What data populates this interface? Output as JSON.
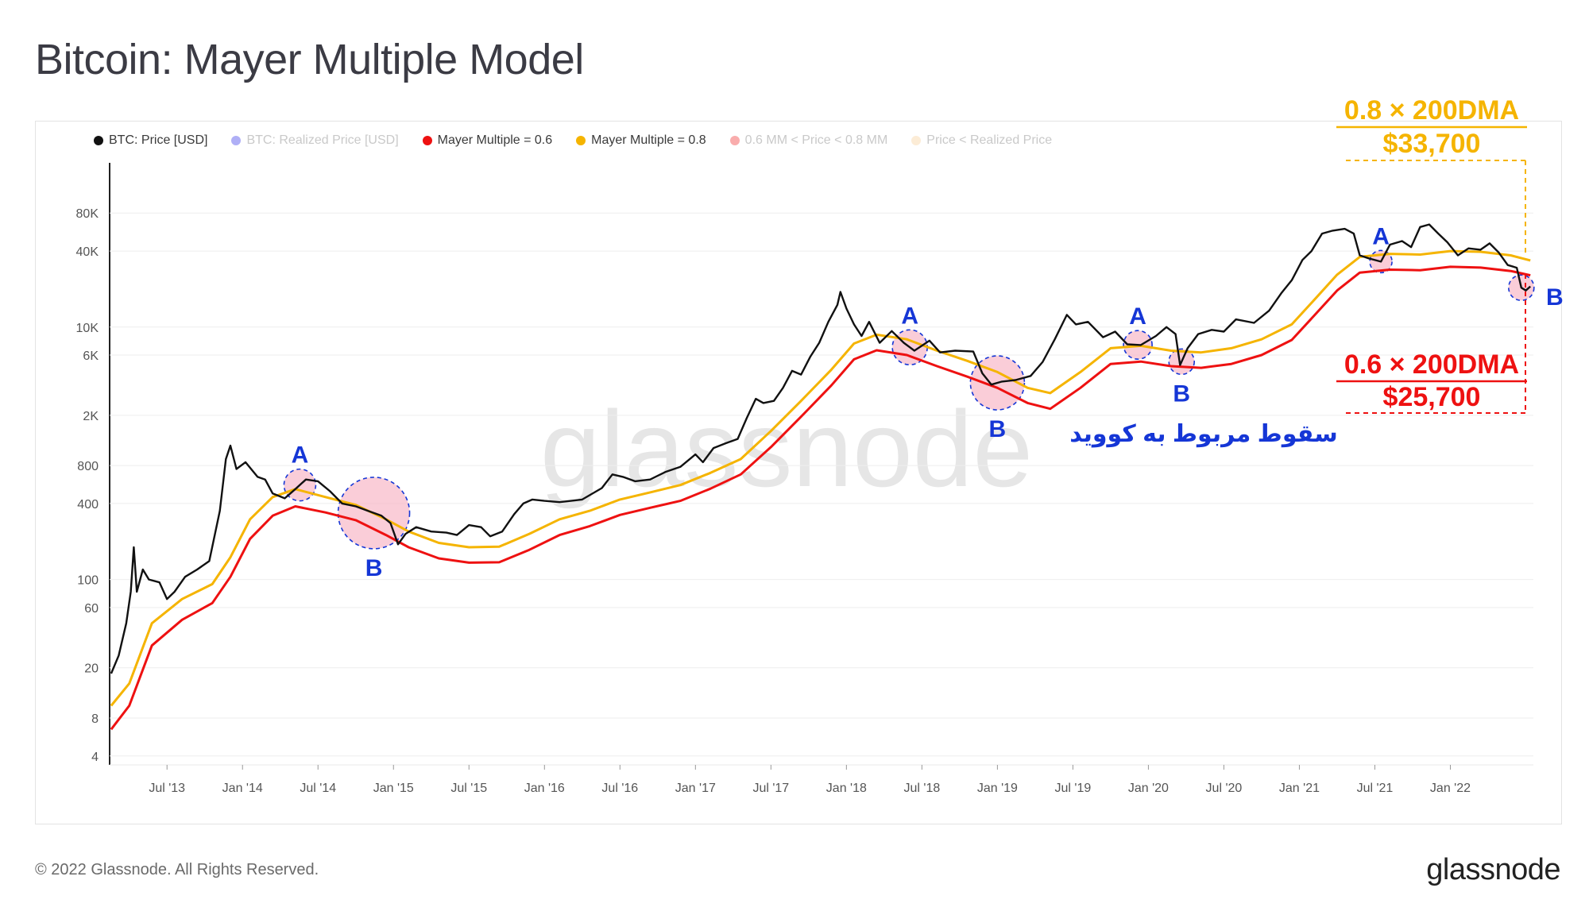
{
  "page": {
    "title": "Bitcoin: Mayer Multiple Model",
    "copyright": "© 2022 Glassnode. All Rights Reserved.",
    "logo_text": "glassnode",
    "watermark": "glassnode"
  },
  "legend": [
    {
      "label": "BTC: Price [USD]",
      "color": "#111111",
      "active": true
    },
    {
      "label": "BTC: Realized Price [USD]",
      "color": "#1a1ae6",
      "active": false
    },
    {
      "label": "Mayer Multiple = 0.6",
      "color": "#ee1111",
      "active": true
    },
    {
      "label": "Mayer Multiple = 0.8",
      "color": "#f5b400",
      "active": true
    },
    {
      "label": "0.6 MM < Price < 0.8 MM",
      "color": "#ee1111",
      "active": false
    },
    {
      "label": "Price < Realized Price",
      "color": "#f7c98a",
      "active": false
    }
  ],
  "annotations": {
    "upper_label": "0.8 × 200DMA",
    "upper_value": "$33,700",
    "lower_label": "0.6 × 200DMA",
    "lower_value": "$25,700",
    "covid_text": "سقوط مربوط به کووید",
    "markers": [
      {
        "letter": "A",
        "date": 2014.38
      },
      {
        "letter": "B",
        "date": 2014.87
      },
      {
        "letter": "A",
        "date": 2018.42
      },
      {
        "letter": "B",
        "date": 2019.0
      },
      {
        "letter": "A",
        "date": 2019.93
      },
      {
        "letter": "B",
        "date": 2020.22
      },
      {
        "letter": "A",
        "date": 2021.54
      },
      {
        "letter": "B",
        "date": 2022.47
      }
    ],
    "colors": {
      "upper": "#f5b400",
      "lower": "#ee1111",
      "marker_text": "#1536d6"
    }
  },
  "chart_data": {
    "type": "line",
    "title": "Bitcoin: Mayer Multiple Model",
    "y_scale": "log",
    "ylim": [
      3.4,
      200000
    ],
    "xlim": [
      2013.12,
      2022.55
    ],
    "y_ticks": [
      {
        "value": 4,
        "label": "4"
      },
      {
        "value": 8,
        "label": "8"
      },
      {
        "value": 20,
        "label": "20"
      },
      {
        "value": 60,
        "label": "60"
      },
      {
        "value": 100,
        "label": "100"
      },
      {
        "value": 400,
        "label": "400"
      },
      {
        "value": 800,
        "label": "800"
      },
      {
        "value": 2000,
        "label": "2K"
      },
      {
        "value": 6000,
        "label": "6K"
      },
      {
        "value": 10000,
        "label": "10K"
      },
      {
        "value": 40000,
        "label": "40K"
      },
      {
        "value": 80000,
        "label": "80K"
      }
    ],
    "x_ticks": [
      {
        "value": 2013.5,
        "label": "Jul '13"
      },
      {
        "value": 2014.0,
        "label": "Jan '14"
      },
      {
        "value": 2014.5,
        "label": "Jul '14"
      },
      {
        "value": 2015.0,
        "label": "Jan '15"
      },
      {
        "value": 2015.5,
        "label": "Jul '15"
      },
      {
        "value": 2016.0,
        "label": "Jan '16"
      },
      {
        "value": 2016.5,
        "label": "Jul '16"
      },
      {
        "value": 2017.0,
        "label": "Jan '17"
      },
      {
        "value": 2017.5,
        "label": "Jul '17"
      },
      {
        "value": 2018.0,
        "label": "Jan '18"
      },
      {
        "value": 2018.5,
        "label": "Jul '18"
      },
      {
        "value": 2019.0,
        "label": "Jan '19"
      },
      {
        "value": 2019.5,
        "label": "Jul '19"
      },
      {
        "value": 2020.0,
        "label": "Jan '20"
      },
      {
        "value": 2020.5,
        "label": "Jul '20"
      },
      {
        "value": 2021.0,
        "label": "Jan '21"
      },
      {
        "value": 2021.5,
        "label": "Jul '21"
      },
      {
        "value": 2022.0,
        "label": "Jan '22"
      }
    ],
    "series": [
      {
        "name": "BTC: Price [USD]",
        "color": "#111111",
        "points": [
          [
            2013.13,
            18
          ],
          [
            2013.18,
            25
          ],
          [
            2013.23,
            45
          ],
          [
            2013.26,
            80
          ],
          [
            2013.28,
            180
          ],
          [
            2013.3,
            80
          ],
          [
            2013.34,
            120
          ],
          [
            2013.38,
            100
          ],
          [
            2013.45,
            95
          ],
          [
            2013.5,
            70
          ],
          [
            2013.55,
            80
          ],
          [
            2013.62,
            105
          ],
          [
            2013.7,
            120
          ],
          [
            2013.78,
            140
          ],
          [
            2013.85,
            350
          ],
          [
            2013.89,
            900
          ],
          [
            2013.92,
            1150
          ],
          [
            2013.96,
            750
          ],
          [
            2014.02,
            850
          ],
          [
            2014.1,
            650
          ],
          [
            2014.15,
            620
          ],
          [
            2014.2,
            480
          ],
          [
            2014.28,
            440
          ],
          [
            2014.35,
            520
          ],
          [
            2014.42,
            620
          ],
          [
            2014.5,
            600
          ],
          [
            2014.58,
            500
          ],
          [
            2014.66,
            400
          ],
          [
            2014.75,
            380
          ],
          [
            2014.83,
            350
          ],
          [
            2014.92,
            320
          ],
          [
            2014.98,
            280
          ],
          [
            2015.03,
            190
          ],
          [
            2015.08,
            230
          ],
          [
            2015.15,
            260
          ],
          [
            2015.25,
            240
          ],
          [
            2015.35,
            235
          ],
          [
            2015.42,
            225
          ],
          [
            2015.5,
            270
          ],
          [
            2015.58,
            260
          ],
          [
            2015.64,
            220
          ],
          [
            2015.72,
            240
          ],
          [
            2015.8,
            330
          ],
          [
            2015.86,
            400
          ],
          [
            2015.92,
            430
          ],
          [
            2016.0,
            420
          ],
          [
            2016.1,
            410
          ],
          [
            2016.25,
            430
          ],
          [
            2016.38,
            530
          ],
          [
            2016.45,
            680
          ],
          [
            2016.52,
            650
          ],
          [
            2016.6,
            600
          ],
          [
            2016.7,
            620
          ],
          [
            2016.8,
            710
          ],
          [
            2016.9,
            780
          ],
          [
            2017.0,
            980
          ],
          [
            2017.05,
            850
          ],
          [
            2017.12,
            1100
          ],
          [
            2017.2,
            1200
          ],
          [
            2017.28,
            1300
          ],
          [
            2017.34,
            1900
          ],
          [
            2017.4,
            2700
          ],
          [
            2017.45,
            2500
          ],
          [
            2017.52,
            2600
          ],
          [
            2017.58,
            3300
          ],
          [
            2017.64,
            4500
          ],
          [
            2017.7,
            4200
          ],
          [
            2017.76,
            5800
          ],
          [
            2017.82,
            7500
          ],
          [
            2017.88,
            11000
          ],
          [
            2017.94,
            15000
          ],
          [
            2017.96,
            19000
          ],
          [
            2018.0,
            14000
          ],
          [
            2018.05,
            10500
          ],
          [
            2018.1,
            8500
          ],
          [
            2018.15,
            11000
          ],
          [
            2018.22,
            7500
          ],
          [
            2018.3,
            9300
          ],
          [
            2018.38,
            7500
          ],
          [
            2018.45,
            6500
          ],
          [
            2018.55,
            7800
          ],
          [
            2018.62,
            6300
          ],
          [
            2018.72,
            6500
          ],
          [
            2018.84,
            6400
          ],
          [
            2018.9,
            4300
          ],
          [
            2018.96,
            3500
          ],
          [
            2019.03,
            3700
          ],
          [
            2019.12,
            3800
          ],
          [
            2019.22,
            4100
          ],
          [
            2019.3,
            5300
          ],
          [
            2019.38,
            8000
          ],
          [
            2019.46,
            12500
          ],
          [
            2019.52,
            10500
          ],
          [
            2019.6,
            11000
          ],
          [
            2019.7,
            8300
          ],
          [
            2019.78,
            9200
          ],
          [
            2019.86,
            7300
          ],
          [
            2019.95,
            7200
          ],
          [
            2020.05,
            8500
          ],
          [
            2020.12,
            10000
          ],
          [
            2020.18,
            8800
          ],
          [
            2020.21,
            5000
          ],
          [
            2020.26,
            6800
          ],
          [
            2020.33,
            8800
          ],
          [
            2020.42,
            9500
          ],
          [
            2020.5,
            9200
          ],
          [
            2020.58,
            11500
          ],
          [
            2020.7,
            10800
          ],
          [
            2020.8,
            13500
          ],
          [
            2020.88,
            18500
          ],
          [
            2020.95,
            23500
          ],
          [
            2021.02,
            34000
          ],
          [
            2021.08,
            40000
          ],
          [
            2021.15,
            55000
          ],
          [
            2021.22,
            58000
          ],
          [
            2021.3,
            60000
          ],
          [
            2021.36,
            55000
          ],
          [
            2021.4,
            37000
          ],
          [
            2021.46,
            35000
          ],
          [
            2021.54,
            33000
          ],
          [
            2021.6,
            45000
          ],
          [
            2021.68,
            48000
          ],
          [
            2021.74,
            43000
          ],
          [
            2021.8,
            62000
          ],
          [
            2021.86,
            65000
          ],
          [
            2021.92,
            55000
          ],
          [
            2021.98,
            47000
          ],
          [
            2022.05,
            37000
          ],
          [
            2022.12,
            42000
          ],
          [
            2022.2,
            41000
          ],
          [
            2022.26,
            46000
          ],
          [
            2022.32,
            39000
          ],
          [
            2022.38,
            31000
          ],
          [
            2022.44,
            29500
          ],
          [
            2022.47,
            20500
          ],
          [
            2022.5,
            19500
          ],
          [
            2022.53,
            21000
          ]
        ]
      },
      {
        "name": "Mayer Multiple = 0.8",
        "color": "#f5b400",
        "points": [
          [
            2013.13,
            10
          ],
          [
            2013.25,
            15
          ],
          [
            2013.4,
            45
          ],
          [
            2013.6,
            70
          ],
          [
            2013.8,
            92
          ],
          [
            2013.92,
            150
          ],
          [
            2014.05,
            300
          ],
          [
            2014.2,
            450
          ],
          [
            2014.35,
            520
          ],
          [
            2014.55,
            450
          ],
          [
            2014.75,
            390
          ],
          [
            2014.95,
            300
          ],
          [
            2015.1,
            240
          ],
          [
            2015.3,
            195
          ],
          [
            2015.5,
            180
          ],
          [
            2015.7,
            182
          ],
          [
            2015.9,
            230
          ],
          [
            2016.1,
            300
          ],
          [
            2016.3,
            350
          ],
          [
            2016.5,
            430
          ],
          [
            2016.7,
            490
          ],
          [
            2016.9,
            560
          ],
          [
            2017.1,
            700
          ],
          [
            2017.3,
            900
          ],
          [
            2017.5,
            1500
          ],
          [
            2017.7,
            2600
          ],
          [
            2017.9,
            4600
          ],
          [
            2018.05,
            7400
          ],
          [
            2018.2,
            8700
          ],
          [
            2018.4,
            8000
          ],
          [
            2018.6,
            6500
          ],
          [
            2018.8,
            5400
          ],
          [
            2019.0,
            4400
          ],
          [
            2019.2,
            3300
          ],
          [
            2019.35,
            3000
          ],
          [
            2019.55,
            4400
          ],
          [
            2019.75,
            6800
          ],
          [
            2019.95,
            7100
          ],
          [
            2020.15,
            6500
          ],
          [
            2020.35,
            6300
          ],
          [
            2020.55,
            6800
          ],
          [
            2020.75,
            8000
          ],
          [
            2020.95,
            10500
          ],
          [
            2021.1,
            16500
          ],
          [
            2021.25,
            26000
          ],
          [
            2021.4,
            36000
          ],
          [
            2021.6,
            38000
          ],
          [
            2021.8,
            37500
          ],
          [
            2022.0,
            40000
          ],
          [
            2022.2,
            39500
          ],
          [
            2022.4,
            37000
          ],
          [
            2022.53,
            33700
          ]
        ]
      },
      {
        "name": "Mayer Multiple = 0.6",
        "color": "#ee1111",
        "points": [
          [
            2013.13,
            6.5
          ],
          [
            2013.25,
            10
          ],
          [
            2013.4,
            30
          ],
          [
            2013.6,
            48
          ],
          [
            2013.8,
            65
          ],
          [
            2013.92,
            105
          ],
          [
            2014.05,
            210
          ],
          [
            2014.2,
            320
          ],
          [
            2014.35,
            380
          ],
          [
            2014.55,
            340
          ],
          [
            2014.75,
            295
          ],
          [
            2014.95,
            225
          ],
          [
            2015.1,
            180
          ],
          [
            2015.3,
            147
          ],
          [
            2015.5,
            136
          ],
          [
            2015.7,
            137
          ],
          [
            2015.9,
            172
          ],
          [
            2016.1,
            225
          ],
          [
            2016.3,
            265
          ],
          [
            2016.5,
            325
          ],
          [
            2016.7,
            370
          ],
          [
            2016.9,
            420
          ],
          [
            2017.1,
            525
          ],
          [
            2017.3,
            680
          ],
          [
            2017.5,
            1120
          ],
          [
            2017.7,
            1950
          ],
          [
            2017.9,
            3450
          ],
          [
            2018.05,
            5550
          ],
          [
            2018.2,
            6550
          ],
          [
            2018.4,
            6000
          ],
          [
            2018.6,
            4900
          ],
          [
            2018.8,
            4050
          ],
          [
            2019.0,
            3300
          ],
          [
            2019.2,
            2500
          ],
          [
            2019.35,
            2250
          ],
          [
            2019.55,
            3300
          ],
          [
            2019.75,
            5100
          ],
          [
            2019.95,
            5330
          ],
          [
            2020.15,
            4900
          ],
          [
            2020.35,
            4750
          ],
          [
            2020.55,
            5100
          ],
          [
            2020.75,
            6000
          ],
          [
            2020.95,
            7900
          ],
          [
            2021.1,
            12400
          ],
          [
            2021.25,
            19500
          ],
          [
            2021.4,
            27000
          ],
          [
            2021.6,
            28500
          ],
          [
            2021.8,
            28200
          ],
          [
            2022.0,
            30000
          ],
          [
            2022.2,
            29600
          ],
          [
            2022.4,
            27800
          ],
          [
            2022.53,
            25700
          ]
        ]
      }
    ]
  }
}
